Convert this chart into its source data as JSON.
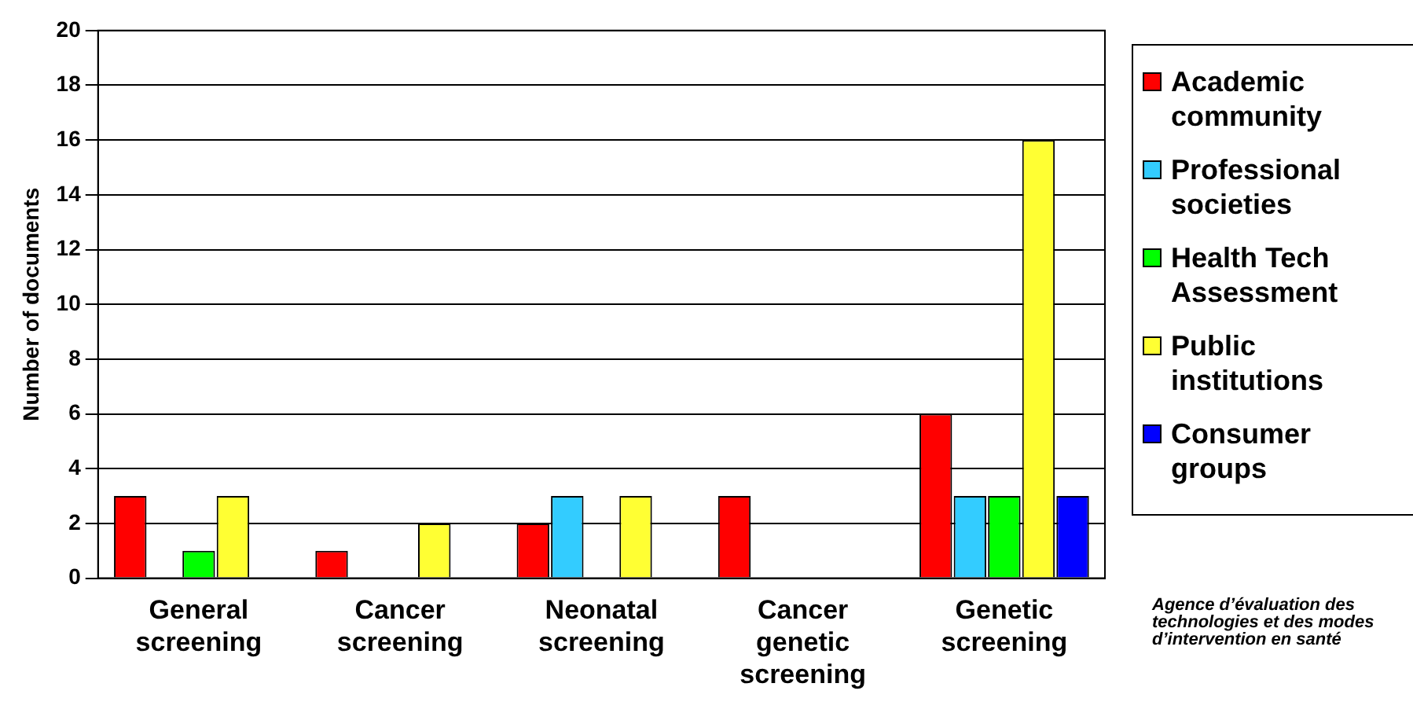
{
  "chart_data": {
    "type": "bar",
    "ylabel": "Number of documents",
    "categories": [
      "General screening",
      "Cancer screening",
      "Neonatal screening",
      "Cancer genetic screening",
      "Genetic screening"
    ],
    "series": [
      {
        "name": "Academic community",
        "color": "#ff0000",
        "values": [
          3,
          1,
          2,
          3,
          6
        ]
      },
      {
        "name": "Professional societies",
        "color": "#33ccff",
        "values": [
          0,
          0,
          3,
          0,
          3
        ]
      },
      {
        "name": "Health Tech Assessment",
        "color": "#00ff00",
        "values": [
          1,
          0,
          0,
          0,
          3
        ]
      },
      {
        "name": "Public institutions",
        "color": "#ffff33",
        "values": [
          3,
          2,
          3,
          0,
          16
        ]
      },
      {
        "name": "Consumer groups",
        "color": "#0000ff",
        "values": [
          0,
          0,
          0,
          0,
          3
        ]
      }
    ],
    "ylim": [
      0,
      20
    ],
    "yticks": [
      0,
      2,
      4,
      6,
      8,
      10,
      12,
      14,
      16,
      18,
      20
    ],
    "grid": "y",
    "legend": "right",
    "annotations": [
      "Agence d’évaluation des technologies et des modes d’intervention en santé"
    ]
  }
}
